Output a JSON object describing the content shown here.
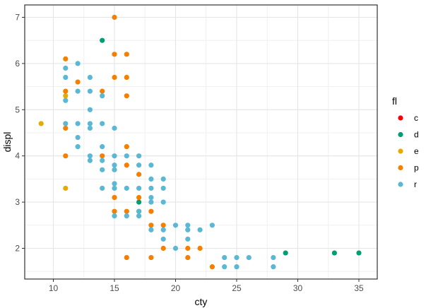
{
  "chart_data": {
    "type": "scatter",
    "title": "",
    "xlabel": "cty",
    "ylabel": "displ",
    "xlim": [
      7.7,
      36.3
    ],
    "ylim": [
      1.33,
      7.27
    ],
    "x_ticks": [
      10,
      15,
      20,
      25,
      30,
      35
    ],
    "y_ticks": [
      2,
      3,
      4,
      5,
      6,
      7
    ],
    "grid": true,
    "legend": {
      "title": "fl",
      "position": "right",
      "entries": [
        {
          "label": "c",
          "color": "#F8000A"
        },
        {
          "label": "d",
          "color": "#009E73"
        },
        {
          "label": "e",
          "color": "#E6AB02"
        },
        {
          "label": "p",
          "color": "#F57F00"
        },
        {
          "label": "r",
          "color": "#5BB8D5"
        }
      ]
    },
    "series": [
      {
        "name": "c",
        "points": []
      },
      {
        "name": "d",
        "points": [
          [
            14,
            6.5
          ],
          [
            17,
            3.0
          ],
          [
            29,
            1.9
          ],
          [
            33,
            1.9
          ],
          [
            35,
            1.9
          ]
        ]
      },
      {
        "name": "e",
        "points": [
          [
            9,
            4.7
          ],
          [
            11,
            5.3
          ],
          [
            11,
            3.3
          ]
        ]
      },
      {
        "name": "p",
        "points": [
          [
            15,
            7.0
          ],
          [
            15,
            6.2
          ],
          [
            16,
            6.2
          ],
          [
            11,
            6.1
          ],
          [
            12,
            5.6
          ],
          [
            15,
            5.7
          ],
          [
            16,
            5.7
          ],
          [
            11,
            5.4
          ],
          [
            14,
            5.4
          ],
          [
            16,
            5.3
          ],
          [
            11,
            4.6
          ],
          [
            16,
            4.2
          ],
          [
            11,
            4.0
          ],
          [
            14,
            4.0
          ],
          [
            16,
            3.8
          ],
          [
            17,
            3.6
          ],
          [
            15,
            3.1
          ],
          [
            17,
            3.1
          ],
          [
            15,
            2.8
          ],
          [
            16,
            2.8
          ],
          [
            17,
            2.8
          ],
          [
            18,
            2.8
          ],
          [
            18,
            2.5
          ],
          [
            19,
            2.5
          ],
          [
            19,
            2.0
          ],
          [
            21,
            2.0
          ],
          [
            22,
            2.0
          ],
          [
            16,
            1.8
          ],
          [
            18,
            1.8
          ],
          [
            21,
            1.8
          ],
          [
            23,
            1.6
          ]
        ]
      },
      {
        "name": "r",
        "points": [
          [
            12,
            6.0
          ],
          [
            11,
            5.9
          ],
          [
            11,
            5.7
          ],
          [
            13,
            5.7
          ],
          [
            12,
            5.4
          ],
          [
            13,
            5.4
          ],
          [
            11,
            5.2
          ],
          [
            14,
            5.3
          ],
          [
            13,
            5.0
          ],
          [
            11,
            4.7
          ],
          [
            12,
            4.7
          ],
          [
            13,
            4.7
          ],
          [
            14,
            4.7
          ],
          [
            13,
            4.6
          ],
          [
            15,
            4.6
          ],
          [
            12,
            4.4
          ],
          [
            12,
            4.2
          ],
          [
            14,
            4.2
          ],
          [
            13,
            4.0
          ],
          [
            15,
            4.0
          ],
          [
            16,
            4.0
          ],
          [
            17,
            4.0
          ],
          [
            13,
            3.9
          ],
          [
            14,
            3.9
          ],
          [
            15,
            3.8
          ],
          [
            17,
            3.8
          ],
          [
            18,
            3.8
          ],
          [
            14,
            3.7
          ],
          [
            15,
            3.7
          ],
          [
            18,
            3.5
          ],
          [
            19,
            3.5
          ],
          [
            15,
            3.4
          ],
          [
            14,
            3.3
          ],
          [
            15,
            3.3
          ],
          [
            16,
            3.3
          ],
          [
            17,
            3.3
          ],
          [
            18,
            3.3
          ],
          [
            19,
            3.3
          ],
          [
            18,
            3.1
          ],
          [
            18,
            3.0
          ],
          [
            19,
            3.0
          ],
          [
            17,
            2.8
          ],
          [
            15,
            2.7
          ],
          [
            16,
            2.7
          ],
          [
            17,
            2.7
          ],
          [
            18,
            2.4
          ],
          [
            19,
            2.4
          ],
          [
            20,
            2.5
          ],
          [
            21,
            2.5
          ],
          [
            21,
            2.4
          ],
          [
            22,
            2.4
          ],
          [
            23,
            2.5
          ],
          [
            19,
            2.2
          ],
          [
            21,
            2.2
          ],
          [
            20,
            2.0
          ],
          [
            24,
            1.8
          ],
          [
            25,
            1.8
          ],
          [
            26,
            1.8
          ],
          [
            28,
            1.8
          ],
          [
            24,
            1.6
          ],
          [
            25,
            1.6
          ],
          [
            28,
            1.6
          ]
        ]
      }
    ]
  }
}
